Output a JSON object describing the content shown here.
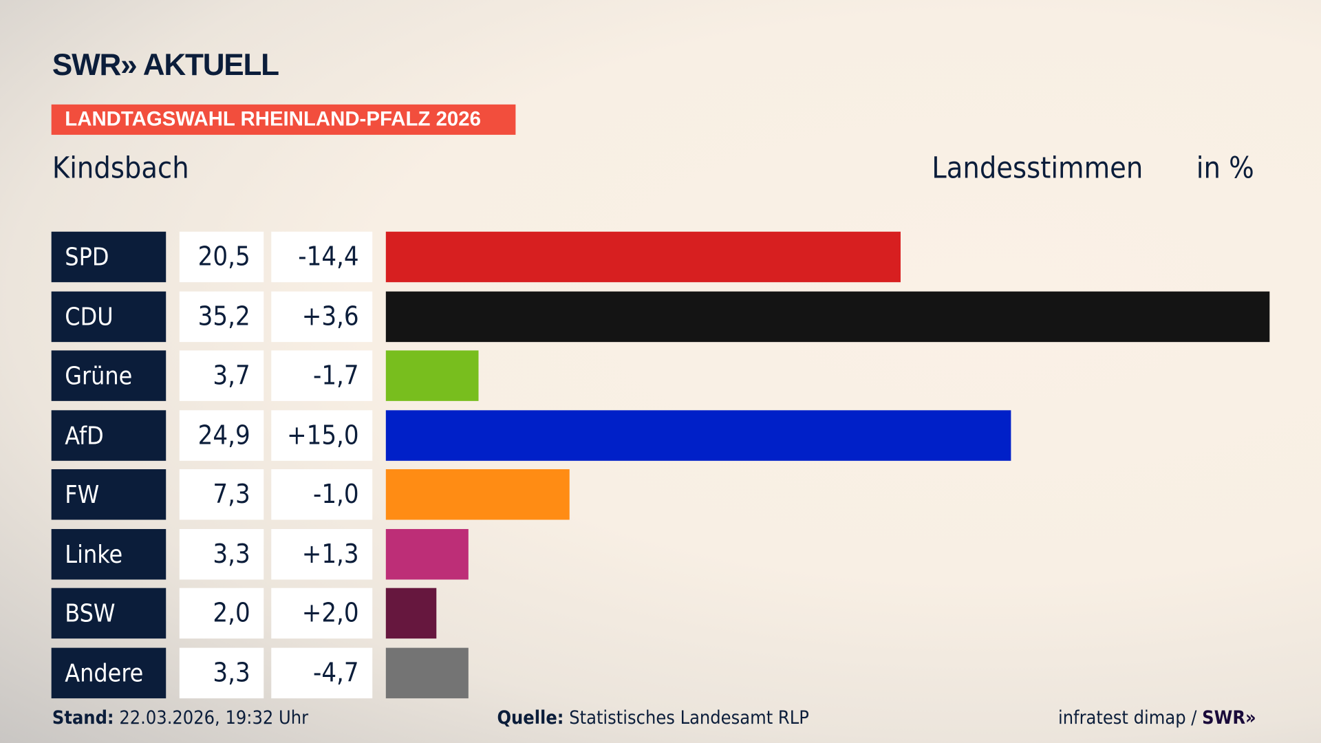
{
  "header": {
    "logo": "SWR» AKTUELL",
    "banner": "LANDTAGSWAHL RHEINLAND-PFALZ 2026",
    "place": "Kindsbach",
    "measure": "Landesstimmen",
    "unit": "in %"
  },
  "chart_data": {
    "type": "bar",
    "orientation": "horizontal",
    "categories": [
      "SPD",
      "CDU",
      "Grüne",
      "AfD",
      "FW",
      "Linke",
      "BSW",
      "Andere"
    ],
    "values": [
      20.5,
      35.2,
      3.7,
      24.9,
      7.3,
      3.3,
      2.0,
      3.3
    ],
    "value_labels": [
      "20,5",
      "35,2",
      "3,7",
      "24,9",
      "7,3",
      "3,3",
      "2,0",
      "3,3"
    ],
    "diff_labels": [
      "-14,4",
      "+3,6",
      "-1,7",
      "+15,0",
      "-1,0",
      "+1,3",
      "+2,0",
      "-4,7"
    ],
    "diffs": [
      -14.4,
      3.6,
      -1.7,
      15.0,
      -1.0,
      1.3,
      2.0,
      -4.7
    ],
    "colors": [
      "#d71f20",
      "#141414",
      "#78be1e",
      "#0020c8",
      "#ff8c14",
      "#bd2e77",
      "#66173e",
      "#747474"
    ],
    "xlim": [
      0,
      35.2
    ],
    "grid": false
  },
  "footer": {
    "stand_label": "Stand:",
    "stand_value": "22.03.2026, 19:32 Uhr",
    "source_label": "Quelle:",
    "source_value": "Statistisches Landesamt RLP",
    "credit": "infratest dimap /",
    "credit_logo": "SWR»"
  }
}
